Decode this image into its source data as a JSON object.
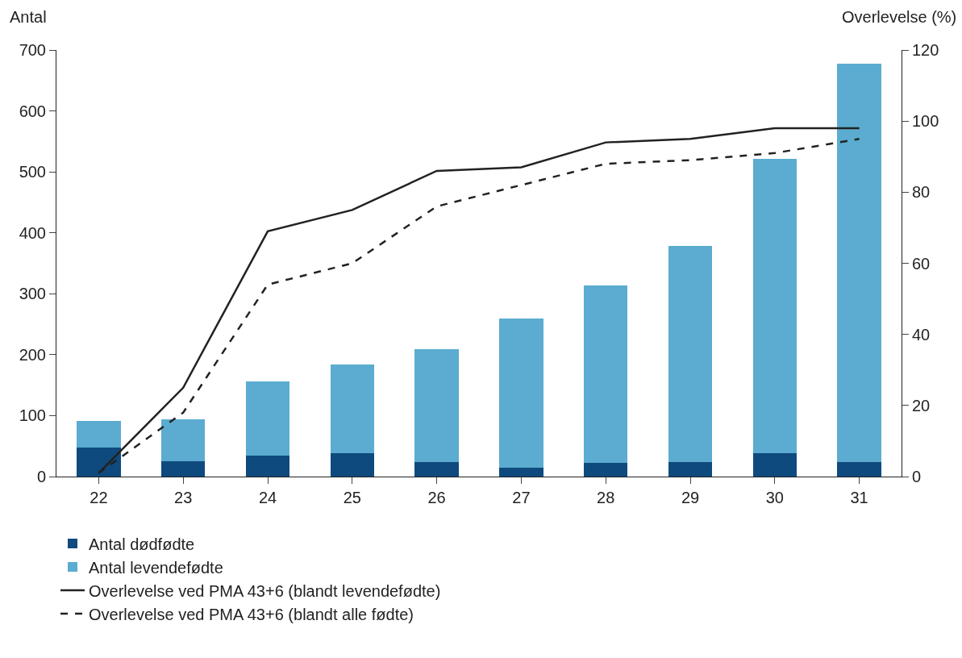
{
  "chart_data": {
    "type": "bar",
    "stacked": true,
    "ylabel": "Antal",
    "y2label": "Overlevelse (%)",
    "categories": [
      "22",
      "23",
      "24",
      "25",
      "26",
      "27",
      "28",
      "29",
      "30",
      "31"
    ],
    "series": [
      {
        "name": "Antal dødfødte",
        "color": "#0f4a7e",
        "values": [
          48,
          25,
          34,
          38,
          24,
          15,
          22,
          24,
          38,
          24
        ]
      },
      {
        "name": "Antal levendefødte",
        "color": "#5bacd0",
        "values": [
          43,
          69,
          122,
          146,
          185,
          245,
          291,
          355,
          484,
          653
        ]
      },
      {
        "name": "Overlevelse ved PMA 43+6 (blandt levendefødte)",
        "type": "line",
        "axis": "y2",
        "line_style": "solid",
        "color": "#222222",
        "values": [
          1,
          25,
          69,
          75,
          86,
          87,
          94,
          95,
          98,
          98
        ]
      },
      {
        "name": "Overlevelse ved PMA 43+6 (blandt alle fødte)",
        "type": "line",
        "axis": "y2",
        "line_style": "dashed",
        "color": "#222222",
        "values": [
          1,
          18,
          54,
          60,
          76,
          82,
          88,
          89,
          91,
          95
        ]
      }
    ],
    "ylim": [
      0,
      700
    ],
    "yticks": [
      0,
      100,
      200,
      300,
      400,
      500,
      600,
      700
    ],
    "y2lim": [
      0,
      120
    ],
    "y2ticks": [
      0,
      20,
      40,
      60,
      80,
      100,
      120
    ],
    "legend": "bottom",
    "marker": "none"
  }
}
